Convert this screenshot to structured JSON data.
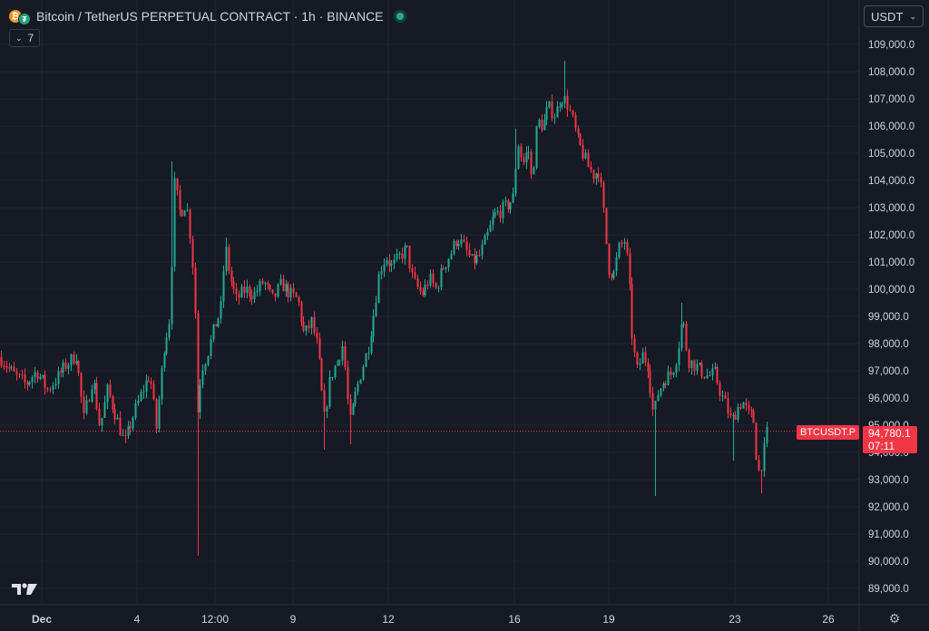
{
  "header": {
    "title": "Bitcoin / TetherUS PERPETUAL CONTRACT · 1h · BINANCE",
    "coin_primary_icon": "bitcoin-icon",
    "coin_secondary_icon": "tether-icon",
    "status_icon": "market-open-dot-icon"
  },
  "indicators_button": {
    "count": "7",
    "icon": "chevron-down-icon"
  },
  "currency_select": {
    "value": "USDT",
    "icon": "chevron-down-icon"
  },
  "price_marker": {
    "symbol": "BTCUSDT.P",
    "price": "94,780.1",
    "countdown": "07:11"
  },
  "footer": {
    "logo_icon": "tradingview-logo-icon",
    "settings_icon": "gear-icon"
  },
  "colors": {
    "background": "#161a25",
    "grid": "#232735",
    "up": "#22ab94",
    "down": "#f23645",
    "text": "#d1d4dc"
  },
  "chart_data": {
    "type": "candlestick",
    "symbol": "BTCUSDT.P",
    "interval": "1h",
    "ylim": [
      88500,
      109500
    ],
    "y_ticks": [
      89000,
      90000,
      91000,
      92000,
      93000,
      94000,
      95000,
      96000,
      97000,
      98000,
      99000,
      100000,
      101000,
      102000,
      103000,
      104000,
      105000,
      106000,
      107000,
      108000,
      109000
    ],
    "y_tick_labels": [
      "89,000.0",
      "90,000.0",
      "91,000.0",
      "92,000.0",
      "93,000.0",
      "94,000.0",
      "95,000.0",
      "96,000.0",
      "97,000.0",
      "98,000.0",
      "99,000.0",
      "100,000.0",
      "101,000.0",
      "102,000.0",
      "103,000.0",
      "104,000.0",
      "105,000.0",
      "106,000.0",
      "107,000.0",
      "108,000.0",
      "109,000.0"
    ],
    "x_tick_labels": [
      "Dec",
      "4",
      "12:00",
      "9",
      "12",
      "16",
      "19",
      "23",
      "26"
    ],
    "last_price": 94780.1,
    "grid": true,
    "close_path": [
      [
        0,
        97500
      ],
      [
        14,
        96900
      ],
      [
        28,
        96500
      ],
      [
        40,
        97000
      ],
      [
        52,
        96300
      ],
      [
        62,
        96700
      ],
      [
        72,
        97200
      ],
      [
        84,
        97600
      ],
      [
        92,
        95200
      ],
      [
        102,
        96800
      ],
      [
        110,
        94900
      ],
      [
        118,
        96300
      ],
      [
        128,
        95300
      ],
      [
        137,
        94300
      ],
      [
        146,
        95300
      ],
      [
        156,
        96200
      ],
      [
        165,
        96900
      ],
      [
        172,
        94900
      ],
      [
        180,
        97800
      ],
      [
        187,
        99000
      ],
      [
        192,
        103900
      ],
      [
        198,
        102800
      ],
      [
        205,
        103200
      ],
      [
        211,
        101500
      ],
      [
        215,
        99000
      ],
      [
        218,
        95000
      ],
      [
        221,
        97000
      ],
      [
        228,
        97600
      ],
      [
        236,
        98600
      ],
      [
        243,
        99200
      ],
      [
        248,
        101600
      ],
      [
        253,
        100500
      ],
      [
        260,
        99600
      ],
      [
        270,
        100000
      ],
      [
        280,
        99800
      ],
      [
        290,
        100300
      ],
      [
        300,
        99600
      ],
      [
        310,
        100200
      ],
      [
        320,
        99800
      ],
      [
        328,
        99600
      ],
      [
        335,
        98300
      ],
      [
        343,
        98800
      ],
      [
        350,
        97800
      ],
      [
        357,
        95200
      ],
      [
        364,
        96800
      ],
      [
        372,
        97400
      ],
      [
        378,
        98000
      ],
      [
        385,
        95000
      ],
      [
        392,
        96200
      ],
      [
        398,
        97000
      ],
      [
        405,
        97800
      ],
      [
        412,
        99200
      ],
      [
        418,
        100700
      ],
      [
        425,
        101200
      ],
      [
        432,
        100800
      ],
      [
        440,
        101200
      ],
      [
        448,
        101500
      ],
      [
        455,
        100300
      ],
      [
        465,
        99800
      ],
      [
        473,
        100400
      ],
      [
        480,
        100000
      ],
      [
        488,
        100800
      ],
      [
        496,
        101300
      ],
      [
        504,
        101900
      ],
      [
        512,
        101500
      ],
      [
        520,
        101000
      ],
      [
        528,
        101200
      ],
      [
        536,
        101900
      ],
      [
        544,
        102700
      ],
      [
        552,
        102900
      ],
      [
        560,
        103100
      ],
      [
        566,
        103400
      ],
      [
        570,
        105500
      ],
      [
        576,
        104600
      ],
      [
        582,
        105200
      ],
      [
        586,
        103900
      ],
      [
        592,
        106200
      ],
      [
        598,
        106000
      ],
      [
        604,
        106700
      ],
      [
        612,
        106400
      ],
      [
        618,
        107100
      ],
      [
        624,
        106900
      ],
      [
        630,
        106300
      ],
      [
        636,
        105500
      ],
      [
        642,
        105000
      ],
      [
        648,
        104500
      ],
      [
        654,
        104200
      ],
      [
        660,
        104400
      ],
      [
        666,
        102500
      ],
      [
        670,
        100800
      ],
      [
        676,
        100500
      ],
      [
        682,
        101500
      ],
      [
        688,
        101800
      ],
      [
        692,
        100800
      ],
      [
        697,
        98000
      ],
      [
        702,
        97000
      ],
      [
        708,
        97600
      ],
      [
        714,
        97200
      ],
      [
        720,
        95300
      ],
      [
        725,
        96200
      ],
      [
        732,
        96700
      ],
      [
        740,
        96900
      ],
      [
        746,
        97600
      ],
      [
        752,
        99000
      ],
      [
        758,
        97400
      ],
      [
        766,
        97200
      ],
      [
        772,
        97000
      ],
      [
        780,
        96800
      ],
      [
        788,
        96900
      ],
      [
        794,
        96200
      ],
      [
        800,
        95700
      ],
      [
        806,
        95100
      ],
      [
        812,
        95600
      ],
      [
        818,
        95900
      ],
      [
        824,
        95400
      ],
      [
        830,
        95300
      ],
      [
        835,
        93200
      ],
      [
        840,
        93700
      ],
      [
        845,
        94780
      ]
    ]
  }
}
